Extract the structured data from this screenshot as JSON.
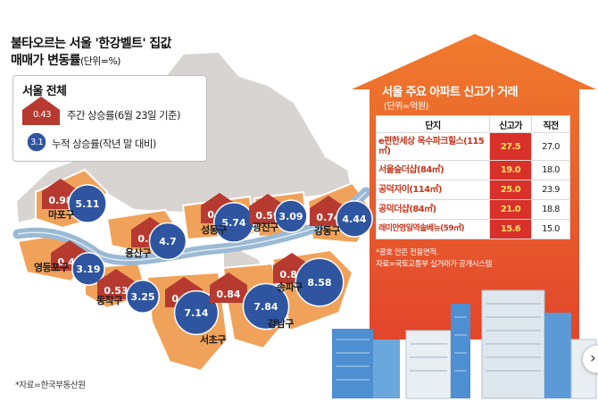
{
  "title": {
    "line1": "불타오르는 서울 '한강벨트' 집값",
    "line2": "매매가 변동률",
    "unit": "(단위=%)"
  },
  "legend": {
    "heading": "서울 전체",
    "weekly_value": "0.43",
    "weekly_label": "주간 상승률(6월 23일 기준)",
    "cumulative_value": "3.1",
    "cumulative_label": "누적 상승률(작년 말 대비)"
  },
  "source_left": "*자료=한국부동산원",
  "chart_data": [
    {
      "type": "bar",
      "title": "",
      "series": [
        {
          "name": "주간 상승률(6월 23일 기준)",
          "values": [
            0.98,
            0.74,
            0.99,
            0.59,
            0.74,
            0.48,
            0.53,
            0.77,
            0.84,
            0.88
          ]
        },
        {
          "name": "누적 상승률(작년 말 대비)",
          "values": [
            5.11,
            4.7,
            5.74,
            3.09,
            4.44,
            3.19,
            3.25,
            7.14,
            7.84,
            8.58
          ]
        }
      ],
      "categories": [
        "마포구",
        "용산구",
        "성동구",
        "광진구",
        "강동구",
        "영등포구",
        "동작구",
        "서초구",
        "강남구",
        "송파구"
      ],
      "colors": {
        "weekly": "#b73a31",
        "cumulative": "#2f55a0",
        "map": "#f0a25a",
        "map_other": "#d6d3d0",
        "river": "#9ab9d4"
      }
    },
    {
      "type": "table",
      "title": "서울 주요 아파트 신고가 거래",
      "unit": "(단위=억원)",
      "columns": [
        "단지",
        "신고가",
        "직전"
      ],
      "rows": [
        {
          "name": "e편한세상 옥수파크힐스(115㎡)",
          "new_high": "27.5",
          "previous": "27.0"
        },
        {
          "name": "서울숲더샵(84㎡)",
          "new_high": "19.0",
          "previous": "18.0"
        },
        {
          "name": "공덕자이(114㎡)",
          "new_high": "25.0",
          "previous": "23.9"
        },
        {
          "name": "공덕더샵(84㎡)",
          "new_high": "21.0",
          "previous": "18.8"
        },
        {
          "name": "래미안영일역솔베뉴(59㎡)",
          "new_high": "15.6",
          "previous": "15.0"
        }
      ],
      "notes": [
        "*괄호 안은 전용면적.",
        "자료=국토교통부 실거래가 공개시스템"
      ]
    }
  ],
  "next_icon": "chevron-right-icon"
}
